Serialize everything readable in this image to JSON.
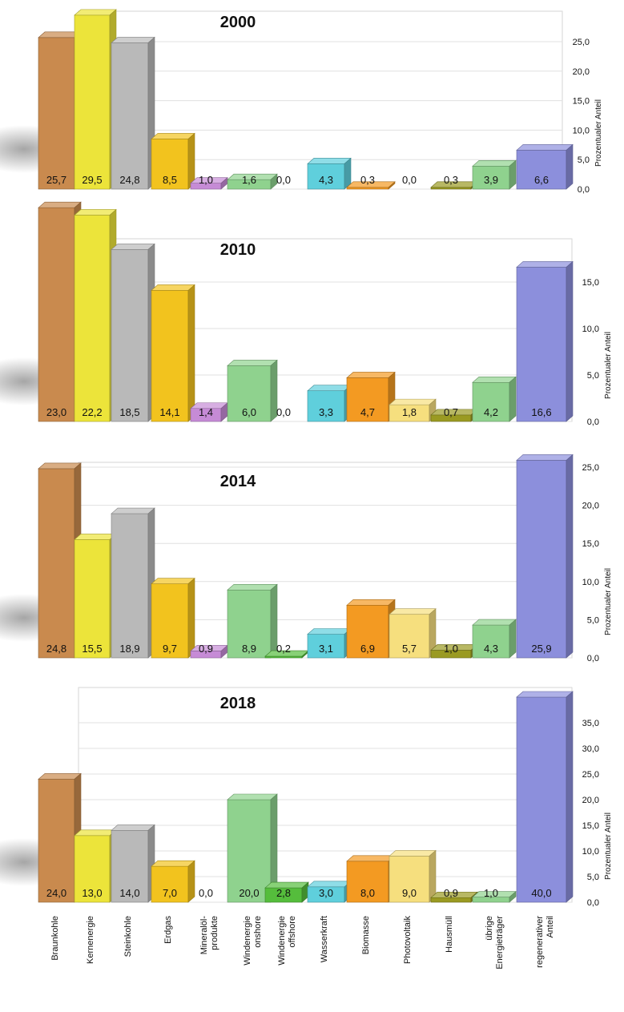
{
  "chart_data": {
    "type": "bar",
    "ylabel": "Prozentualer Anteil",
    "categories": [
      "Braunkohle",
      "Kernenergie",
      "Steinkohle",
      "Erdgas",
      "Mineralöl-\nprodukte",
      "Windenergie\nonshore",
      "Windenergie\noffshore",
      "Wasserkraft",
      "Biomasse",
      "Photovoltaik",
      "Hausmüll",
      "übrige\nEnergieträger",
      "regenerativer\nAnteil"
    ],
    "colors": [
      "#c98a4e",
      "#ece43a",
      "#b9b9b9",
      "#f2c31e",
      "#c68bd6",
      "#8fd28e",
      "#55bd3c",
      "#5fcfdc",
      "#f39a22",
      "#f6df7e",
      "#9a9a22",
      "#8fd28e",
      "#8c8fdc"
    ],
    "panels": [
      {
        "title": "2000",
        "ylim": [
          0,
          25
        ],
        "yticks": [
          0,
          5,
          10,
          15,
          20,
          25
        ],
        "tick_labels": [
          "0,0",
          "5,0",
          "10,0",
          "15,0",
          "20,0",
          "25,0"
        ],
        "values": [
          25.7,
          29.5,
          24.8,
          8.5,
          1.0,
          1.6,
          0.0,
          4.3,
          0.3,
          0.0,
          0.3,
          3.9,
          6.6
        ],
        "value_labels": [
          "25,7",
          "29,5",
          "24,8",
          "8,5",
          "1,0",
          "1,6",
          "0,0",
          "4,3",
          "0,3",
          "0,0",
          "0,3",
          "3,9",
          "6,6"
        ]
      },
      {
        "title": "2010",
        "ylim": [
          0,
          15
        ],
        "yticks": [
          0,
          5,
          10,
          15
        ],
        "tick_labels": [
          "0,0",
          "5,0",
          "10,0",
          "15,0"
        ],
        "values": [
          23.0,
          22.2,
          18.5,
          14.1,
          1.4,
          6.0,
          0.0,
          3.3,
          4.7,
          1.8,
          0.7,
          4.2,
          16.6
        ],
        "value_labels": [
          "23,0",
          "22,2",
          "18,5",
          "14,1",
          "1,4",
          "6,0",
          "0,0",
          "3,3",
          "4,7",
          "1,8",
          "0,7",
          "4,2",
          "16,6"
        ]
      },
      {
        "title": "2014",
        "ylim": [
          0,
          25
        ],
        "yticks": [
          0,
          5,
          10,
          15,
          20,
          25
        ],
        "tick_labels": [
          "0,0",
          "5,0",
          "10,0",
          "15,0",
          "20,0",
          "25,0"
        ],
        "values": [
          24.8,
          15.5,
          18.9,
          9.7,
          0.9,
          8.9,
          0.2,
          3.1,
          6.9,
          5.7,
          1.0,
          4.3,
          25.9
        ],
        "value_labels": [
          "24,8",
          "15,5",
          "18,9",
          "9,7",
          "0,9",
          "8,9",
          "0,2",
          "3,1",
          "6,9",
          "5,7",
          "1,0",
          "4,3",
          "25,9"
        ]
      },
      {
        "title": "2018",
        "ylim": [
          0,
          35
        ],
        "yticks": [
          0,
          5,
          10,
          15,
          20,
          25,
          30,
          35
        ],
        "tick_labels": [
          "0,0",
          "5,0",
          "10,0",
          "15,0",
          "20,0",
          "25,0",
          "30,0",
          "35,0"
        ],
        "values": [
          24.0,
          13.0,
          14.0,
          7.0,
          0.0,
          20.0,
          2.8,
          3.0,
          8.0,
          9.0,
          0.9,
          1.0,
          40.0
        ],
        "value_labels": [
          "24,0",
          "13,0",
          "14,0",
          "7,0",
          "0,0",
          "20,0",
          "2,8",
          "3,0",
          "8,0",
          "9,0",
          "0,9",
          "1,0",
          "40,0"
        ]
      }
    ]
  }
}
